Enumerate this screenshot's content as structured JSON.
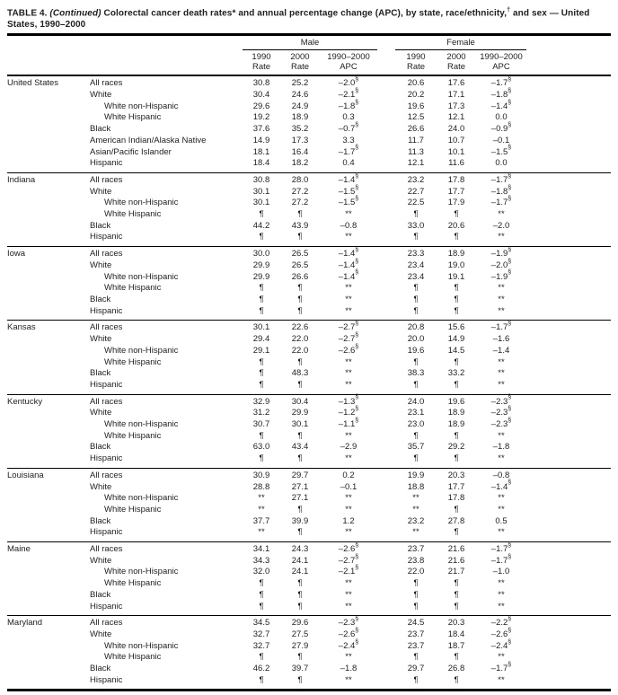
{
  "colors": {
    "background": "#ffffff",
    "text": "#1e1e1e",
    "rule": "#000000"
  },
  "title": {
    "part1": "TABLE 4.",
    "continued": "(Continued)",
    "part2": "Colorectal cancer death rates* and annual percentage change (APC), by state, race/ethnicity,",
    "dagger": "†",
    "part3": "and sex — United States, 1990–2000"
  },
  "header": {
    "male_label": "Male",
    "female_label": "Female",
    "columns": [
      {
        "line1": "1990",
        "line2": "Rate"
      },
      {
        "line1": "2000",
        "line2": "Rate"
      },
      {
        "line1": "1990–2000",
        "line2": "APC"
      }
    ]
  },
  "table": {
    "sections": [
      {
        "state": "United States",
        "rows": [
          {
            "race": "All races",
            "indent": false,
            "values": [
              "30.8",
              "25.2",
              "–2.0§",
              "20.6",
              "17.6",
              "–1.7§"
            ]
          },
          {
            "race": "White",
            "indent": false,
            "values": [
              "30.4",
              "24.6",
              "–2.1§",
              "20.2",
              "17.1",
              "–1.8§"
            ]
          },
          {
            "race": "White non-Hispanic",
            "indent": true,
            "values": [
              "29.6",
              "24.9",
              "–1.8§",
              "19.6",
              "17.3",
              "–1.4§"
            ]
          },
          {
            "race": "White Hispanic",
            "indent": true,
            "values": [
              "19.2",
              "18.9",
              "0.3",
              "12.5",
              "12.1",
              "0.0"
            ]
          },
          {
            "race": "Black",
            "indent": false,
            "values": [
              "37.6",
              "35.2",
              "–0.7§",
              "26.6",
              "24.0",
              "–0.9§"
            ]
          },
          {
            "race": "American Indian/Alaska Native",
            "indent": false,
            "values": [
              "14.9",
              "17.3",
              "3.3",
              "11.7",
              "10.7",
              "–0.1"
            ]
          },
          {
            "race": "Asian/Pacific Islander",
            "indent": false,
            "values": [
              "18.1",
              "16.4",
              "–1.7§",
              "11.3",
              "10.1",
              "–1.5§"
            ]
          },
          {
            "race": "Hispanic",
            "indent": false,
            "values": [
              "18.4",
              "18.2",
              "0.4",
              "12.1",
              "11.6",
              "0.0"
            ]
          }
        ]
      },
      {
        "state": "Indiana",
        "rows": [
          {
            "race": "All races",
            "indent": false,
            "values": [
              "30.8",
              "28.0",
              "–1.4§",
              "23.2",
              "17.8",
              "–1.7§"
            ]
          },
          {
            "race": "White",
            "indent": false,
            "values": [
              "30.1",
              "27.2",
              "–1.5§",
              "22.7",
              "17.7",
              "–1.8§"
            ]
          },
          {
            "race": "White non-Hispanic",
            "indent": true,
            "values": [
              "30.1",
              "27.2",
              "–1.5§",
              "22.5",
              "17.9",
              "–1.7§"
            ]
          },
          {
            "race": "White Hispanic",
            "indent": true,
            "values": [
              "¶",
              "¶",
              "**",
              "¶",
              "¶",
              "**"
            ]
          },
          {
            "race": "Black",
            "indent": false,
            "values": [
              "44.2",
              "43.9",
              "–0.8",
              "33.0",
              "20.6",
              "–2.0"
            ]
          },
          {
            "race": "Hispanic",
            "indent": false,
            "values": [
              "¶",
              "¶",
              "**",
              "¶",
              "¶",
              "**"
            ]
          }
        ]
      },
      {
        "state": "Iowa",
        "rows": [
          {
            "race": "All races",
            "indent": false,
            "values": [
              "30.0",
              "26.5",
              "–1.4§",
              "23.3",
              "18.9",
              "–1.9§"
            ]
          },
          {
            "race": "White",
            "indent": false,
            "values": [
              "29.9",
              "26.5",
              "–1.4§",
              "23.4",
              "19.0",
              "–2.0§"
            ]
          },
          {
            "race": "White non-Hispanic",
            "indent": true,
            "values": [
              "29.9",
              "26.6",
              "–1.4§",
              "23.4",
              "19.1",
              "–1.9§"
            ]
          },
          {
            "race": "White Hispanic",
            "indent": true,
            "values": [
              "¶",
              "¶",
              "**",
              "¶",
              "¶",
              "**"
            ]
          },
          {
            "race": "Black",
            "indent": false,
            "values": [
              "¶",
              "¶",
              "**",
              "¶",
              "¶",
              "**"
            ]
          },
          {
            "race": "Hispanic",
            "indent": false,
            "values": [
              "¶",
              "¶",
              "**",
              "¶",
              "¶",
              "**"
            ]
          }
        ]
      },
      {
        "state": "Kansas",
        "rows": [
          {
            "race": "All races",
            "indent": false,
            "values": [
              "30.1",
              "22.6",
              "–2.7§",
              "20.8",
              "15.6",
              "–1.7§"
            ]
          },
          {
            "race": "White",
            "indent": false,
            "values": [
              "29.4",
              "22.0",
              "–2.7§",
              "20.0",
              "14.9",
              "–1.6"
            ]
          },
          {
            "race": "White non-Hispanic",
            "indent": true,
            "values": [
              "29.1",
              "22.0",
              "–2.6§",
              "19.6",
              "14.5",
              "–1.4"
            ]
          },
          {
            "race": "White Hispanic",
            "indent": true,
            "values": [
              "¶",
              "¶",
              "**",
              "¶",
              "¶",
              "**"
            ]
          },
          {
            "race": "Black",
            "indent": false,
            "values": [
              "¶",
              "48.3",
              "**",
              "38.3",
              "33.2",
              "**"
            ]
          },
          {
            "race": "Hispanic",
            "indent": false,
            "values": [
              "¶",
              "¶",
              "**",
              "¶",
              "¶",
              "**"
            ]
          }
        ]
      },
      {
        "state": "Kentucky",
        "rows": [
          {
            "race": "All races",
            "indent": false,
            "values": [
              "32.9",
              "30.4",
              "–1.3§",
              "24.0",
              "19.6",
              "–2.3§"
            ]
          },
          {
            "race": "White",
            "indent": false,
            "values": [
              "31.2",
              "29.9",
              "–1.2§",
              "23.1",
              "18.9",
              "–2.3§"
            ]
          },
          {
            "race": "White non-Hispanic",
            "indent": true,
            "values": [
              "30.7",
              "30.1",
              "–1.1§",
              "23.0",
              "18.9",
              "–2.3§"
            ]
          },
          {
            "race": "White Hispanic",
            "indent": true,
            "values": [
              "¶",
              "¶",
              "**",
              "¶",
              "¶",
              "**"
            ]
          },
          {
            "race": "Black",
            "indent": false,
            "values": [
              "63.0",
              "43.4",
              "–2.9",
              "35.7",
              "29.2",
              "–1.8"
            ]
          },
          {
            "race": "Hispanic",
            "indent": false,
            "values": [
              "¶",
              "¶",
              "**",
              "¶",
              "¶",
              "**"
            ]
          }
        ]
      },
      {
        "state": "Louisiana",
        "rows": [
          {
            "race": "All races",
            "indent": false,
            "values": [
              "30.9",
              "29.7",
              "0.2",
              "19.9",
              "20.3",
              "–0.8"
            ]
          },
          {
            "race": "White",
            "indent": false,
            "values": [
              "28.8",
              "27.1",
              "–0.1",
              "18.8",
              "17.7",
              "–1.4§"
            ]
          },
          {
            "race": "White non-Hispanic",
            "indent": true,
            "values": [
              "**",
              "27.1",
              "**",
              "**",
              "17.8",
              "**"
            ]
          },
          {
            "race": "White Hispanic",
            "indent": true,
            "values": [
              "**",
              "¶",
              "**",
              "**",
              "¶",
              "**"
            ]
          },
          {
            "race": "Black",
            "indent": false,
            "values": [
              "37.7",
              "39.9",
              "1.2",
              "23.2",
              "27.8",
              "0.5"
            ]
          },
          {
            "race": "Hispanic",
            "indent": false,
            "values": [
              "**",
              "¶",
              "**",
              "**",
              "¶",
              "**"
            ]
          }
        ]
      },
      {
        "state": "Maine",
        "rows": [
          {
            "race": "All races",
            "indent": false,
            "values": [
              "34.1",
              "24.3",
              "–2.6§",
              "23.7",
              "21.6",
              "–1.7§"
            ]
          },
          {
            "race": "White",
            "indent": false,
            "values": [
              "34.3",
              "24.1",
              "–2.7§",
              "23.8",
              "21.6",
              "–1.7§"
            ]
          },
          {
            "race": "White non-Hispanic",
            "indent": true,
            "values": [
              "32.0",
              "24.1",
              "–2.1§",
              "22.0",
              "21.7",
              "–1.0"
            ]
          },
          {
            "race": "White Hispanic",
            "indent": true,
            "values": [
              "¶",
              "¶",
              "**",
              "¶",
              "¶",
              "**"
            ]
          },
          {
            "race": "Black",
            "indent": false,
            "values": [
              "¶",
              "¶",
              "**",
              "¶",
              "¶",
              "**"
            ]
          },
          {
            "race": "Hispanic",
            "indent": false,
            "values": [
              "¶",
              "¶",
              "**",
              "¶",
              "¶",
              "**"
            ]
          }
        ]
      },
      {
        "state": "Maryland",
        "rows": [
          {
            "race": "All races",
            "indent": false,
            "values": [
              "34.5",
              "29.6",
              "–2.3§",
              "24.5",
              "20.3",
              "–2.2§"
            ]
          },
          {
            "race": "White",
            "indent": false,
            "values": [
              "32.7",
              "27.5",
              "–2.6§",
              "23.7",
              "18.4",
              "–2.6§"
            ]
          },
          {
            "race": "White non-Hispanic",
            "indent": true,
            "values": [
              "32.7",
              "27.9",
              "–2.4§",
              "23.7",
              "18.7",
              "–2.4§"
            ]
          },
          {
            "race": "White Hispanic",
            "indent": true,
            "values": [
              "¶",
              "¶",
              "**",
              "¶",
              "¶",
              "**"
            ]
          },
          {
            "race": "Black",
            "indent": false,
            "values": [
              "46.2",
              "39.7",
              "–1.8",
              "29.7",
              "26.8",
              "–1.7§"
            ]
          },
          {
            "race": "Hispanic",
            "indent": false,
            "values": [
              "¶",
              "¶",
              "**",
              "¶",
              "¶",
              "**"
            ]
          }
        ]
      }
    ]
  }
}
